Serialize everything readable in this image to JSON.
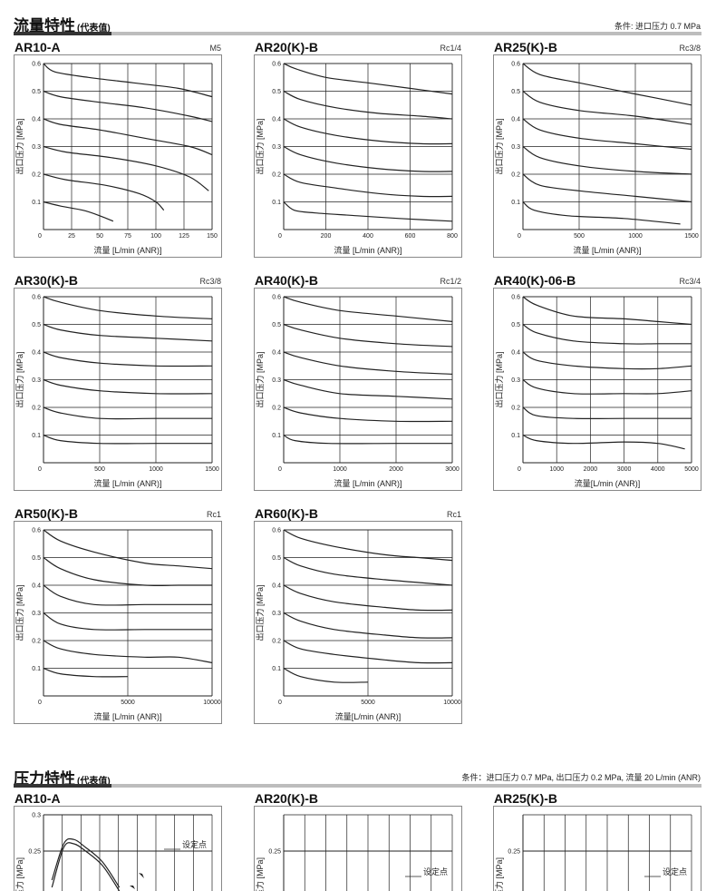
{
  "section_flow": {
    "title": "流量特性",
    "title_note": "(代表值)",
    "condition": "条件: 进口压力 0.7 MPa"
  },
  "section_pressure": {
    "title": "压力特性",
    "title_note": "(代表值)",
    "condition": "条件：进口压力 0.7 MPa, 出口压力 0.2 MPa, 流量 20 L/min (ANR)"
  },
  "colors": {
    "curve": "#222222",
    "grid": "#222222",
    "frame": "#888888",
    "section_bar": "#bdbdbd"
  },
  "chart_data": [
    {
      "type": "line",
      "title": "AR10-A",
      "port": "M5",
      "xlabel": "流量 [L/min (ANR)]",
      "ylabel": "出口压力 [MPa]",
      "xlim": [
        0,
        150
      ],
      "ylim": [
        0,
        0.6
      ],
      "xticks": [
        0,
        25,
        50,
        75,
        100,
        125,
        150
      ],
      "yticks": [
        0.1,
        0.2,
        0.3,
        0.4,
        0.5,
        0.6
      ],
      "series": [
        {
          "x": [
            0,
            10,
            40,
            80,
            120,
            150
          ],
          "y": [
            0.6,
            0.57,
            0.55,
            0.53,
            0.51,
            0.48
          ]
        },
        {
          "x": [
            0,
            15,
            50,
            90,
            130,
            150
          ],
          "y": [
            0.5,
            0.48,
            0.46,
            0.44,
            0.41,
            0.39
          ]
        },
        {
          "x": [
            0,
            15,
            50,
            90,
            130,
            150
          ],
          "y": [
            0.4,
            0.38,
            0.36,
            0.33,
            0.3,
            0.27
          ]
        },
        {
          "x": [
            0,
            20,
            60,
            100,
            130,
            147
          ],
          "y": [
            0.3,
            0.28,
            0.26,
            0.23,
            0.19,
            0.14
          ]
        },
        {
          "x": [
            0,
            20,
            55,
            85,
            100,
            107
          ],
          "y": [
            0.2,
            0.18,
            0.16,
            0.13,
            0.1,
            0.07
          ]
        },
        {
          "x": [
            0,
            15,
            35,
            50,
            62
          ],
          "y": [
            0.1,
            0.085,
            0.07,
            0.05,
            0.03
          ]
        }
      ]
    },
    {
      "type": "line",
      "title": "AR20(K)-B",
      "port": "Rc1/4",
      "xlabel": "流量 [L/min (ANR)]",
      "ylabel": "出口压力 [MPa]",
      "xlim": [
        0,
        800
      ],
      "ylim": [
        0,
        0.6
      ],
      "xticks": [
        0,
        200,
        400,
        600,
        800
      ],
      "yticks": [
        0.1,
        0.2,
        0.3,
        0.4,
        0.5,
        0.6
      ],
      "series": [
        {
          "x": [
            0,
            60,
            200,
            400,
            600,
            800
          ],
          "y": [
            0.6,
            0.58,
            0.55,
            0.53,
            0.51,
            0.49
          ]
        },
        {
          "x": [
            0,
            80,
            250,
            450,
            650,
            800
          ],
          "y": [
            0.5,
            0.47,
            0.44,
            0.42,
            0.41,
            0.4
          ]
        },
        {
          "x": [
            0,
            80,
            250,
            450,
            650,
            800
          ],
          "y": [
            0.4,
            0.37,
            0.34,
            0.32,
            0.31,
            0.31
          ]
        },
        {
          "x": [
            0,
            80,
            250,
            450,
            650,
            800
          ],
          "y": [
            0.3,
            0.27,
            0.24,
            0.22,
            0.21,
            0.21
          ]
        },
        {
          "x": [
            0,
            80,
            250,
            450,
            650,
            800
          ],
          "y": [
            0.2,
            0.17,
            0.15,
            0.13,
            0.12,
            0.12
          ]
        },
        {
          "x": [
            0,
            50,
            150,
            350,
            550,
            800
          ],
          "y": [
            0.1,
            0.07,
            0.06,
            0.05,
            0.04,
            0.03
          ]
        }
      ]
    },
    {
      "type": "line",
      "title": "AR25(K)-B",
      "port": "Rc3/8",
      "xlabel": "流量 [L/min (ANR)]",
      "ylabel": "出口压力 [MPa]",
      "xlim": [
        0,
        1500
      ],
      "ylim": [
        0,
        0.6
      ],
      "xticks": [
        0,
        500,
        1000,
        1500
      ],
      "yticks": [
        0.1,
        0.2,
        0.3,
        0.4,
        0.5,
        0.6
      ],
      "series": [
        {
          "x": [
            0,
            150,
            500,
            1000,
            1500
          ],
          "y": [
            0.6,
            0.56,
            0.53,
            0.49,
            0.45
          ]
        },
        {
          "x": [
            0,
            150,
            500,
            1000,
            1500
          ],
          "y": [
            0.5,
            0.46,
            0.43,
            0.41,
            0.38
          ]
        },
        {
          "x": [
            0,
            150,
            500,
            1000,
            1500
          ],
          "y": [
            0.4,
            0.36,
            0.33,
            0.31,
            0.29
          ]
        },
        {
          "x": [
            0,
            150,
            500,
            1000,
            1500
          ],
          "y": [
            0.3,
            0.26,
            0.23,
            0.21,
            0.2
          ]
        },
        {
          "x": [
            0,
            150,
            500,
            1000,
            1500
          ],
          "y": [
            0.2,
            0.16,
            0.14,
            0.12,
            0.1
          ]
        },
        {
          "x": [
            0,
            100,
            400,
            900,
            1400
          ],
          "y": [
            0.1,
            0.07,
            0.05,
            0.04,
            0.02
          ]
        }
      ]
    },
    {
      "type": "line",
      "title": "AR30(K)-B",
      "port": "Rc3/8",
      "xlabel": "流量 [L/min (ANR)]",
      "ylabel": "出口压力 [MPa]",
      "xlim": [
        0,
        1500
      ],
      "ylim": [
        0,
        0.6
      ],
      "xticks": [
        0,
        500,
        1000,
        1500
      ],
      "yticks": [
        0.1,
        0.2,
        0.3,
        0.4,
        0.5,
        0.6
      ],
      "series": [
        {
          "x": [
            0,
            150,
            500,
            1000,
            1500
          ],
          "y": [
            0.6,
            0.58,
            0.55,
            0.53,
            0.52
          ]
        },
        {
          "x": [
            0,
            150,
            500,
            1000,
            1500
          ],
          "y": [
            0.5,
            0.48,
            0.46,
            0.45,
            0.44
          ]
        },
        {
          "x": [
            0,
            150,
            500,
            1000,
            1500
          ],
          "y": [
            0.4,
            0.38,
            0.36,
            0.35,
            0.35
          ]
        },
        {
          "x": [
            0,
            150,
            500,
            1000,
            1500
          ],
          "y": [
            0.3,
            0.28,
            0.26,
            0.25,
            0.25
          ]
        },
        {
          "x": [
            0,
            150,
            500,
            1000,
            1500
          ],
          "y": [
            0.2,
            0.18,
            0.16,
            0.16,
            0.16
          ]
        },
        {
          "x": [
            0,
            150,
            500,
            1000,
            1500
          ],
          "y": [
            0.1,
            0.08,
            0.07,
            0.07,
            0.07
          ]
        }
      ]
    },
    {
      "type": "line",
      "title": "AR40(K)-B",
      "port": "Rc1/2",
      "xlabel": "流量 [L/min (ANR)]",
      "ylabel": "出口压力 [MPa]",
      "xlim": [
        0,
        3000
      ],
      "ylim": [
        0,
        0.6
      ],
      "xticks": [
        0,
        1000,
        2000,
        3000
      ],
      "yticks": [
        0.1,
        0.2,
        0.3,
        0.4,
        0.5,
        0.6
      ],
      "series": [
        {
          "x": [
            0,
            300,
            1000,
            2000,
            3000
          ],
          "y": [
            0.6,
            0.58,
            0.55,
            0.53,
            0.51
          ]
        },
        {
          "x": [
            0,
            300,
            1000,
            2000,
            3000
          ],
          "y": [
            0.5,
            0.48,
            0.45,
            0.43,
            0.42
          ]
        },
        {
          "x": [
            0,
            300,
            1000,
            2000,
            3000
          ],
          "y": [
            0.4,
            0.38,
            0.35,
            0.33,
            0.32
          ]
        },
        {
          "x": [
            0,
            300,
            1000,
            2000,
            3000
          ],
          "y": [
            0.3,
            0.28,
            0.25,
            0.24,
            0.23
          ]
        },
        {
          "x": [
            0,
            300,
            1000,
            2000,
            3000
          ],
          "y": [
            0.2,
            0.18,
            0.16,
            0.15,
            0.15
          ]
        },
        {
          "x": [
            0,
            200,
            800,
            2000,
            3000
          ],
          "y": [
            0.1,
            0.08,
            0.07,
            0.07,
            0.07
          ]
        }
      ]
    },
    {
      "type": "line",
      "title": "AR40(K)-06-B",
      "port": "Rc3/4",
      "xlabel": "流量[L/min (ANR)]",
      "ylabel": "出口压力 [MPa]",
      "xlim": [
        0,
        5000
      ],
      "ylim": [
        0,
        0.6
      ],
      "xticks": [
        0,
        1000,
        2000,
        3000,
        4000,
        5000
      ],
      "yticks": [
        0.1,
        0.2,
        0.3,
        0.4,
        0.5,
        0.6
      ],
      "series": [
        {
          "x": [
            0,
            400,
            1500,
            3000,
            4000,
            5000
          ],
          "y": [
            0.6,
            0.57,
            0.53,
            0.52,
            0.51,
            0.5
          ]
        },
        {
          "x": [
            0,
            400,
            1500,
            3000,
            4000,
            5000
          ],
          "y": [
            0.5,
            0.47,
            0.44,
            0.43,
            0.43,
            0.43
          ]
        },
        {
          "x": [
            0,
            400,
            1500,
            3000,
            4000,
            5000
          ],
          "y": [
            0.4,
            0.37,
            0.35,
            0.34,
            0.34,
            0.35
          ]
        },
        {
          "x": [
            0,
            400,
            1500,
            3000,
            4000,
            5000
          ],
          "y": [
            0.3,
            0.27,
            0.25,
            0.25,
            0.25,
            0.26
          ]
        },
        {
          "x": [
            0,
            400,
            1500,
            3000,
            4000,
            5000
          ],
          "y": [
            0.2,
            0.17,
            0.16,
            0.16,
            0.16,
            0.16
          ]
        },
        {
          "x": [
            0,
            400,
            1500,
            3000,
            4000,
            4800
          ],
          "y": [
            0.1,
            0.08,
            0.07,
            0.075,
            0.07,
            0.05
          ]
        }
      ]
    },
    {
      "type": "line",
      "title": "AR50(K)-B",
      "port": "Rc1",
      "xlabel": "流量 [L/min (ANR)]",
      "ylabel": "出口压力 [MPa]",
      "xlim": [
        0,
        10000
      ],
      "ylim": [
        0,
        0.6
      ],
      "xticks": [
        0,
        5000,
        10000
      ],
      "yticks": [
        0.1,
        0.2,
        0.3,
        0.4,
        0.5,
        0.6
      ],
      "series": [
        {
          "x": [
            0,
            1000,
            3000,
            6000,
            8000,
            10000
          ],
          "y": [
            0.6,
            0.56,
            0.52,
            0.48,
            0.47,
            0.46
          ]
        },
        {
          "x": [
            0,
            1000,
            3000,
            6000,
            8000,
            10000
          ],
          "y": [
            0.5,
            0.46,
            0.42,
            0.4,
            0.4,
            0.4
          ]
        },
        {
          "x": [
            0,
            1000,
            3000,
            6000,
            8000,
            10000
          ],
          "y": [
            0.4,
            0.36,
            0.33,
            0.33,
            0.33,
            0.33
          ]
        },
        {
          "x": [
            0,
            1000,
            3000,
            6000,
            8000,
            10000
          ],
          "y": [
            0.3,
            0.26,
            0.24,
            0.24,
            0.24,
            0.24
          ]
        },
        {
          "x": [
            0,
            1000,
            3000,
            6000,
            8000,
            10000
          ],
          "y": [
            0.2,
            0.17,
            0.15,
            0.14,
            0.14,
            0.12
          ]
        },
        {
          "x": [
            0,
            1000,
            3000,
            5000
          ],
          "y": [
            0.1,
            0.08,
            0.07,
            0.07
          ]
        }
      ]
    },
    {
      "type": "line",
      "title": "AR60(K)-B",
      "port": "Rc1",
      "xlabel": "流量[L/min (ANR)]",
      "ylabel": "出口压力 [MPa]",
      "xlim": [
        0,
        10000
      ],
      "ylim": [
        0,
        0.6
      ],
      "xticks": [
        0,
        5000,
        10000
      ],
      "yticks": [
        0.1,
        0.2,
        0.3,
        0.4,
        0.5,
        0.6
      ],
      "series": [
        {
          "x": [
            0,
            1000,
            3000,
            6000,
            8000,
            10000
          ],
          "y": [
            0.6,
            0.57,
            0.54,
            0.51,
            0.5,
            0.49
          ]
        },
        {
          "x": [
            0,
            1000,
            3000,
            6000,
            8000,
            10000
          ],
          "y": [
            0.5,
            0.47,
            0.44,
            0.42,
            0.41,
            0.4
          ]
        },
        {
          "x": [
            0,
            1000,
            3000,
            6000,
            8000,
            10000
          ],
          "y": [
            0.4,
            0.37,
            0.34,
            0.32,
            0.31,
            0.31
          ]
        },
        {
          "x": [
            0,
            1000,
            3000,
            6000,
            8000,
            10000
          ],
          "y": [
            0.3,
            0.27,
            0.24,
            0.22,
            0.21,
            0.21
          ]
        },
        {
          "x": [
            0,
            1000,
            3000,
            6000,
            8000,
            10000
          ],
          "y": [
            0.2,
            0.17,
            0.15,
            0.13,
            0.12,
            0.12
          ]
        },
        {
          "x": [
            0,
            1000,
            3000,
            5000
          ],
          "y": [
            0.1,
            0.07,
            0.05,
            0.05
          ]
        }
      ]
    },
    {
      "type": "line",
      "title": "AR10-A",
      "port": "",
      "ylabel": "出口压力 [MPa]",
      "annotation": "设定点",
      "ylim": [
        0,
        0.3
      ],
      "yticks": [
        0.25,
        0.3
      ],
      "series": [
        {
          "x": [
            0.05,
            0.12,
            0.18,
            0.25,
            0.35,
            0.45
          ],
          "y": [
            0.21,
            0.26,
            0.266,
            0.255,
            0.235,
            0.2
          ]
        },
        {
          "x": [
            0.05,
            0.12,
            0.18,
            0.25,
            0.35,
            0.45
          ],
          "y": [
            0.2,
            0.255,
            0.26,
            0.25,
            0.23,
            0.195
          ]
        }
      ]
    },
    {
      "type": "line",
      "title": "AR20(K)-B",
      "port": "",
      "ylabel": "出口压力 [MPa]",
      "annotation": "设定点",
      "ylim": [
        0,
        0.3
      ],
      "yticks": [
        0.25
      ],
      "series": []
    },
    {
      "type": "line",
      "title": "AR25(K)-B",
      "port": "",
      "ylabel": "出口压力 [MPa]",
      "annotation": "设定点",
      "ylim": [
        0,
        0.3
      ],
      "yticks": [
        0.25
      ],
      "series": []
    }
  ]
}
